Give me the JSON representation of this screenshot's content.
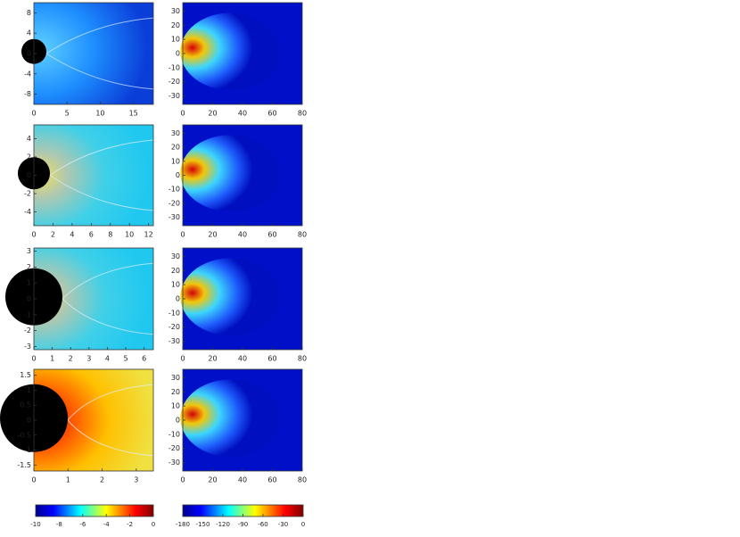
{
  "figure": {
    "panels": [
      {
        "xlim": [
          0,
          18
        ],
        "xticks": [
          0,
          5,
          10,
          15
        ],
        "ylim": [
          -10,
          10
        ],
        "yticks": [
          8,
          4,
          0,
          -4,
          -8
        ]
      },
      {
        "xlim": [
          0,
          80
        ],
        "xticks": [
          0,
          20,
          40,
          60,
          80
        ],
        "ylim": [
          -36,
          36
        ],
        "yticks": [
          30,
          20,
          10,
          0,
          -10,
          -20,
          -30
        ]
      },
      {
        "xlim": [
          0,
          12.5
        ],
        "xticks": [
          0,
          2,
          4,
          6,
          8,
          10,
          12
        ],
        "ylim": [
          -5.5,
          5.5
        ],
        "yticks": [
          4,
          2,
          0,
          -2,
          -4
        ]
      },
      {
        "xlim": [
          0,
          80
        ],
        "xticks": [
          0,
          20,
          40,
          60,
          80
        ],
        "ylim": [
          -36,
          36
        ],
        "yticks": [
          30,
          20,
          10,
          0,
          -10,
          -20,
          -30
        ]
      },
      {
        "xlim": [
          0,
          6.5
        ],
        "xticks": [
          0,
          1,
          2,
          3,
          4,
          5,
          6
        ],
        "ylim": [
          -3.2,
          3.2
        ],
        "yticks": [
          3,
          2,
          1,
          0,
          -1,
          -2,
          -3
        ]
      },
      {
        "xlim": [
          0,
          80
        ],
        "xticks": [
          0,
          20,
          40,
          60,
          80
        ],
        "ylim": [
          -36,
          36
        ],
        "yticks": [
          30,
          20,
          10,
          0,
          -10,
          -20,
          -30
        ]
      },
      {
        "xlim": [
          0,
          3.5
        ],
        "xticks": [
          0,
          1,
          2,
          3
        ],
        "ylim": [
          -1.7,
          1.7
        ],
        "yticks": [
          1.5,
          1,
          0.5,
          0,
          -0.5,
          -1,
          -1.5
        ]
      },
      {
        "xlim": [
          0,
          80
        ],
        "xticks": [
          0,
          20,
          40,
          60,
          80
        ],
        "ylim": [
          -36,
          36
        ],
        "yticks": [
          30,
          20,
          10,
          0,
          -10,
          -20,
          -30
        ]
      }
    ],
    "colorbars": [
      {
        "lim": [
          -10,
          0
        ],
        "ticks": [
          -10,
          -8,
          -6,
          -4,
          -2,
          0
        ]
      },
      {
        "lim": [
          -180,
          0
        ],
        "ticks": [
          -180,
          -150,
          -120,
          -90,
          -60,
          -30,
          0
        ]
      }
    ]
  }
}
